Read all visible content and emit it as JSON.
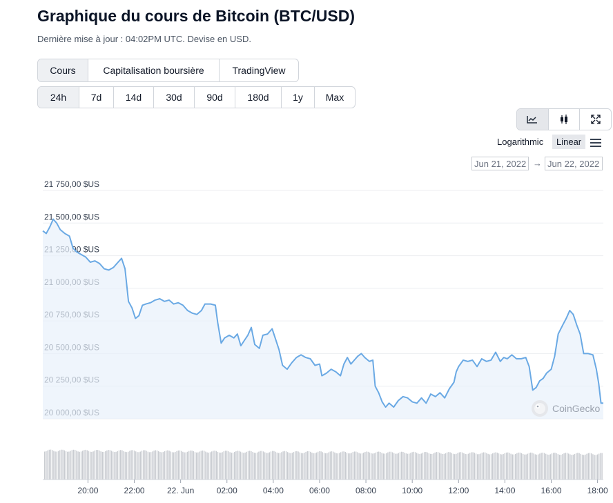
{
  "header": {
    "title": "Graphique du cours de Bitcoin (BTC/USD)",
    "subtitle": "Dernière mise à jour : 04:02PM UTC. Devise en USD."
  },
  "tabs": [
    {
      "label": "Cours",
      "active": true
    },
    {
      "label": "Capitalisation boursière",
      "active": false
    },
    {
      "label": "TradingView",
      "active": false
    }
  ],
  "ranges": [
    {
      "label": "24h",
      "active": true
    },
    {
      "label": "7d",
      "active": false
    },
    {
      "label": "14d",
      "active": false
    },
    {
      "label": "30d",
      "active": false
    },
    {
      "label": "90d",
      "active": false
    },
    {
      "label": "180d",
      "active": false
    },
    {
      "label": "1y",
      "active": false
    },
    {
      "label": "Max",
      "active": false
    }
  ],
  "toolbar": {
    "icons": [
      "line-chart-icon",
      "candlestick-icon",
      "fullscreen-icon"
    ],
    "log_label": "Logarithmic",
    "linear_label": "Linear",
    "menu_icon": "menu-icon",
    "date_from": "Jun 21, 2022",
    "date_arrow": "→",
    "date_to": "Jun 22, 2022"
  },
  "watermark": "CoinGecko",
  "colors": {
    "line": "#6aa9e4",
    "fill": "#e8f1fb",
    "grid": "#eceef1",
    "volume": "#c9ccd1"
  },
  "chart_data": {
    "type": "line",
    "y_ticks": [
      "21 750,00 $US",
      "21 500,00 $US",
      "21 250,00 $US",
      "21 000,00 $US",
      "20 750,00 $US",
      "20 500,00 $US",
      "20 250,00 $US",
      "20 000,00 $US"
    ],
    "y_tick_values": [
      21750,
      21500,
      21250,
      21000,
      20750,
      20500,
      20250,
      20000
    ],
    "x_ticks": [
      "20:00",
      "22:00",
      "22. Jun",
      "02:00",
      "04:00",
      "06:00",
      "08:00",
      "10:00",
      "12:00",
      "14:00",
      "16:00",
      "18:00"
    ],
    "x_tick_hours": [
      20,
      22,
      24,
      26,
      28,
      30,
      32,
      34,
      36,
      38,
      40,
      42
    ],
    "x_range_hours": [
      18.05,
      42.25
    ],
    "ylim": [
      20000,
      21750
    ],
    "series": [
      {
        "points": [
          [
            18.05,
            21440
          ],
          [
            18.2,
            21420
          ],
          [
            18.35,
            21470
          ],
          [
            18.5,
            21530
          ],
          [
            18.65,
            21500
          ],
          [
            18.8,
            21450
          ],
          [
            19.0,
            21420
          ],
          [
            19.2,
            21400
          ],
          [
            19.35,
            21310
          ],
          [
            19.5,
            21280
          ],
          [
            19.7,
            21260
          ],
          [
            19.9,
            21240
          ],
          [
            20.1,
            21200
          ],
          [
            20.3,
            21210
          ],
          [
            20.5,
            21190
          ],
          [
            20.7,
            21150
          ],
          [
            20.9,
            21140
          ],
          [
            21.1,
            21160
          ],
          [
            21.3,
            21200
          ],
          [
            21.45,
            21230
          ],
          [
            21.6,
            21150
          ],
          [
            21.75,
            20900
          ],
          [
            21.9,
            20850
          ],
          [
            22.05,
            20770
          ],
          [
            22.2,
            20790
          ],
          [
            22.35,
            20870
          ],
          [
            22.5,
            20880
          ],
          [
            22.7,
            20890
          ],
          [
            22.9,
            20910
          ],
          [
            23.1,
            20920
          ],
          [
            23.3,
            20900
          ],
          [
            23.5,
            20910
          ],
          [
            23.7,
            20880
          ],
          [
            23.9,
            20890
          ],
          [
            24.1,
            20870
          ],
          [
            24.3,
            20830
          ],
          [
            24.5,
            20810
          ],
          [
            24.7,
            20800
          ],
          [
            24.9,
            20830
          ],
          [
            25.05,
            20880
          ],
          [
            25.3,
            20880
          ],
          [
            25.5,
            20870
          ],
          [
            25.6,
            20740
          ],
          [
            25.75,
            20580
          ],
          [
            25.9,
            20620
          ],
          [
            26.1,
            20640
          ],
          [
            26.3,
            20620
          ],
          [
            26.45,
            20650
          ],
          [
            26.6,
            20560
          ],
          [
            26.75,
            20600
          ],
          [
            26.9,
            20640
          ],
          [
            27.05,
            20700
          ],
          [
            27.2,
            20570
          ],
          [
            27.4,
            20540
          ],
          [
            27.55,
            20640
          ],
          [
            27.75,
            20650
          ],
          [
            27.95,
            20690
          ],
          [
            28.1,
            20610
          ],
          [
            28.25,
            20530
          ],
          [
            28.4,
            20410
          ],
          [
            28.6,
            20380
          ],
          [
            28.8,
            20430
          ],
          [
            29.0,
            20470
          ],
          [
            29.2,
            20490
          ],
          [
            29.4,
            20470
          ],
          [
            29.6,
            20460
          ],
          [
            29.8,
            20410
          ],
          [
            30.0,
            20420
          ],
          [
            30.1,
            20330
          ],
          [
            30.3,
            20350
          ],
          [
            30.5,
            20380
          ],
          [
            30.7,
            20360
          ],
          [
            30.9,
            20330
          ],
          [
            31.05,
            20420
          ],
          [
            31.2,
            20470
          ],
          [
            31.35,
            20420
          ],
          [
            31.5,
            20450
          ],
          [
            31.65,
            20480
          ],
          [
            31.8,
            20500
          ],
          [
            31.95,
            20470
          ],
          [
            32.15,
            20440
          ],
          [
            32.3,
            20450
          ],
          [
            32.4,
            20250
          ],
          [
            32.55,
            20200
          ],
          [
            32.7,
            20130
          ],
          [
            32.85,
            20090
          ],
          [
            33.0,
            20120
          ],
          [
            33.2,
            20090
          ],
          [
            33.4,
            20140
          ],
          [
            33.6,
            20170
          ],
          [
            33.8,
            20160
          ],
          [
            34.0,
            20130
          ],
          [
            34.2,
            20120
          ],
          [
            34.4,
            20160
          ],
          [
            34.6,
            20120
          ],
          [
            34.8,
            20190
          ],
          [
            35.0,
            20170
          ],
          [
            35.2,
            20200
          ],
          [
            35.4,
            20160
          ],
          [
            35.6,
            20230
          ],
          [
            35.8,
            20280
          ],
          [
            35.9,
            20360
          ],
          [
            36.0,
            20400
          ],
          [
            36.2,
            20450
          ],
          [
            36.4,
            20440
          ],
          [
            36.6,
            20450
          ],
          [
            36.8,
            20400
          ],
          [
            37.0,
            20460
          ],
          [
            37.2,
            20440
          ],
          [
            37.4,
            20450
          ],
          [
            37.6,
            20510
          ],
          [
            37.8,
            20440
          ],
          [
            37.95,
            20470
          ],
          [
            38.1,
            20460
          ],
          [
            38.3,
            20490
          ],
          [
            38.5,
            20460
          ],
          [
            38.7,
            20460
          ],
          [
            38.9,
            20470
          ],
          [
            39.05,
            20400
          ],
          [
            39.2,
            20220
          ],
          [
            39.35,
            20240
          ],
          [
            39.5,
            20290
          ],
          [
            39.65,
            20310
          ],
          [
            39.8,
            20350
          ],
          [
            40.0,
            20380
          ],
          [
            40.15,
            20480
          ],
          [
            40.3,
            20650
          ],
          [
            40.5,
            20720
          ],
          [
            40.65,
            20770
          ],
          [
            40.8,
            20830
          ],
          [
            40.95,
            20800
          ],
          [
            41.1,
            20720
          ],
          [
            41.25,
            20650
          ],
          [
            41.4,
            20500
          ],
          [
            41.6,
            20500
          ],
          [
            41.8,
            20490
          ],
          [
            41.95,
            20380
          ],
          [
            42.05,
            20270
          ],
          [
            42.15,
            20120
          ],
          [
            42.25,
            20120
          ]
        ]
      }
    ]
  }
}
